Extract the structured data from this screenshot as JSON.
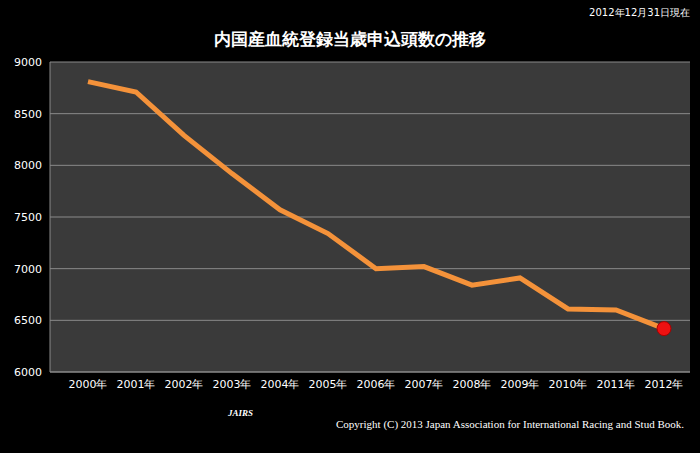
{
  "chart_data": {
    "type": "line",
    "title": "内国産血統登録当歳申込頭数の推移",
    "subtitle": "2012年12月31日現在",
    "annotations": [
      "Copyright (C) 2013 Japan Association for International Racing and Stud Book.",
      "JAIRS"
    ],
    "categories": [
      "2000年",
      "2001年",
      "2002年",
      "2003年",
      "2004年",
      "2005年",
      "2006年",
      "2007年",
      "2008年",
      "2009年",
      "2010年",
      "2011年",
      "2012年"
    ],
    "values": [
      8810,
      8710,
      8290,
      7920,
      7570,
      7340,
      7000,
      7020,
      6840,
      6910,
      6610,
      6600,
      6420
    ],
    "color": "#f4923a",
    "colors": [
      "#f4923a",
      "#f4923a",
      "#f4923a",
      "#f4923a",
      "#f4923a",
      "#f4923a",
      "#f4923a",
      "#f4923a",
      "#f4923a",
      "#f4923a",
      "#f4923a",
      "#f4923a",
      "#ee1111"
    ],
    "ylim": [
      6000,
      9000
    ],
    "yticks": [
      6000,
      6500,
      7000,
      7500,
      8000,
      8500,
      9000
    ],
    "grid": true
  }
}
